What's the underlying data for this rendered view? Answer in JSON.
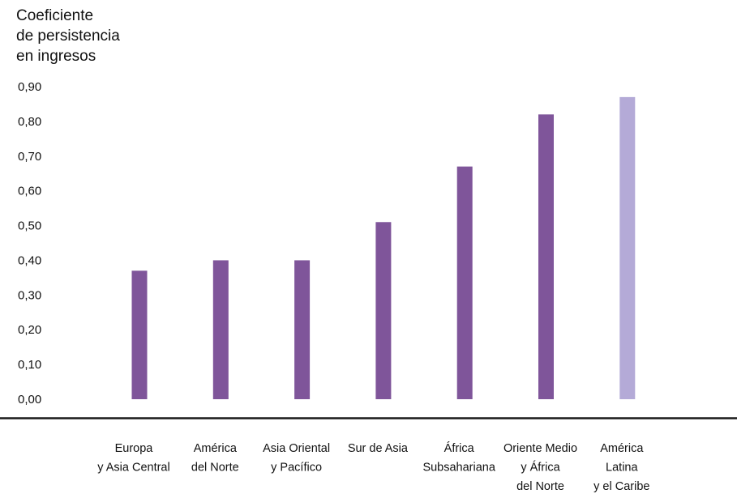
{
  "chart_data": {
    "type": "bar",
    "ylabel_lines": [
      "Coeficiente",
      "de persistencia",
      "en ingresos"
    ],
    "yticks": [
      "0,00",
      "0,10",
      "0,20",
      "0,30",
      "0,40",
      "0,50",
      "0,60",
      "0,70",
      "0,80",
      "0,90"
    ],
    "ylim": [
      0,
      0.9
    ],
    "grid": false,
    "categories": [
      [
        "Europa",
        "y Asia Central"
      ],
      [
        "América",
        "del Norte"
      ],
      [
        "Asia Oriental",
        "y Pacífico"
      ],
      [
        "Sur de Asia"
      ],
      [
        "África",
        "Subsahariana"
      ],
      [
        "Oriente Medio",
        "y África",
        "del Norte"
      ],
      [
        "América",
        "Latina",
        "y el Caribe"
      ]
    ],
    "values": [
      0.37,
      0.4,
      0.4,
      0.51,
      0.67,
      0.82,
      0.87
    ],
    "colors": [
      "#7f559a",
      "#7f559a",
      "#7f559a",
      "#7f559a",
      "#7f559a",
      "#7f559a",
      "#b4aad7"
    ]
  }
}
